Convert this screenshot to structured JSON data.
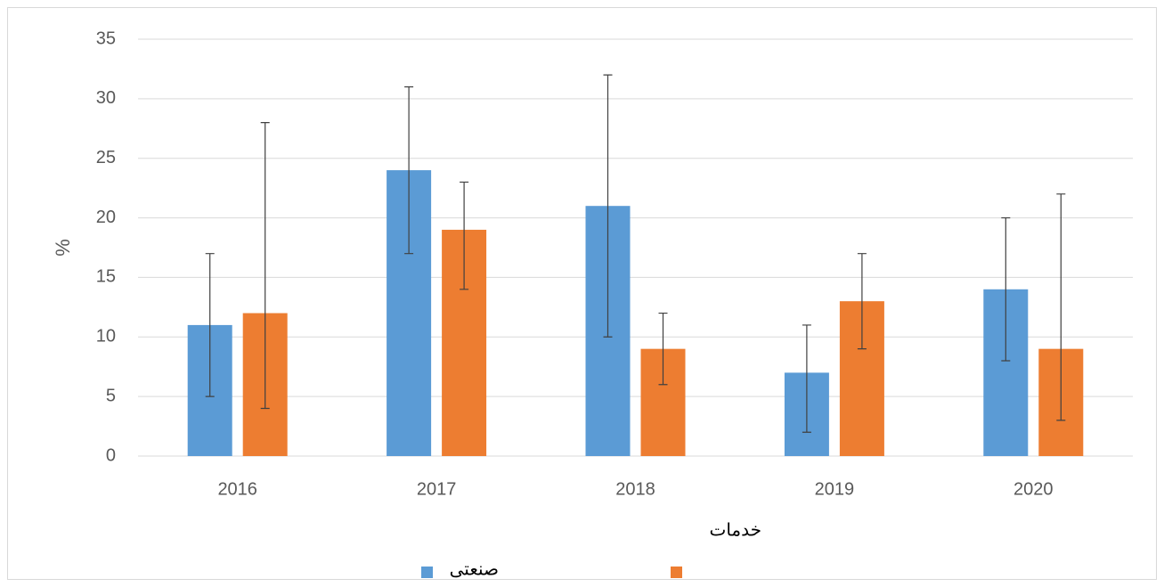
{
  "chart_data": {
    "type": "bar",
    "y_label": "%",
    "categories": [
      "2016",
      "2017",
      "2018",
      "2019",
      "2020"
    ],
    "series": [
      {
        "name": "صنعتی",
        "color": "#5b9bd5",
        "values": [
          11,
          24,
          21,
          7,
          14
        ],
        "error_plus": [
          6,
          7,
          11,
          4,
          6
        ],
        "error_minus": [
          6,
          7,
          11,
          5,
          6
        ]
      },
      {
        "name": "خدمات",
        "color": "#ed7d31",
        "values": [
          12,
          19,
          9,
          13,
          9
        ],
        "error_plus": [
          16,
          4,
          3,
          4,
          13
        ],
        "error_minus": [
          8,
          5,
          3,
          4,
          6
        ]
      }
    ],
    "ylim": [
      0,
      35
    ],
    "yticks": [
      0,
      5,
      10,
      15,
      20,
      25,
      30,
      35
    ],
    "grid": true
  }
}
